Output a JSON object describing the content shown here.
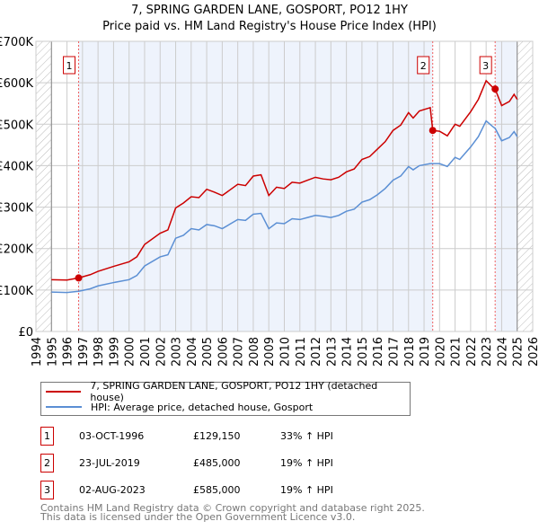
{
  "chart_data": {
    "type": "line",
    "title": "7, SPRING GARDEN LANE, GOSPORT, PO12 1HY",
    "subtitle": "Price paid vs. HM Land Registry's House Price Index (HPI)",
    "xlim": [
      1994,
      2026
    ],
    "ylim": [
      0,
      700000
    ],
    "y_ticks": [
      {
        "v": 0,
        "label": "£0"
      },
      {
        "v": 100000,
        "label": "£100K"
      },
      {
        "v": 200000,
        "label": "£200K"
      },
      {
        "v": 300000,
        "label": "£300K"
      },
      {
        "v": 400000,
        "label": "£400K"
      },
      {
        "v": 500000,
        "label": "£500K"
      },
      {
        "v": 600000,
        "label": "£600K"
      },
      {
        "v": 700000,
        "label": "£700K"
      }
    ],
    "x_ticks": [
      "1994",
      "1995",
      "1996",
      "1997",
      "1998",
      "1999",
      "2000",
      "2001",
      "2002",
      "2003",
      "2004",
      "2005",
      "2006",
      "2007",
      "2008",
      "2009",
      "2010",
      "2011",
      "2012",
      "2013",
      "2014",
      "2015",
      "2016",
      "2017",
      "2018",
      "2019",
      "2020",
      "2021",
      "2022",
      "2023",
      "2024",
      "2025",
      "2026"
    ],
    "data_range": [
      1995,
      2025
    ],
    "grid": true,
    "series": [
      {
        "name": "7, SPRING GARDEN LANE, GOSPORT, PO12 1HY (detached house)",
        "color": "#cc0000",
        "x": [
          1995,
          1996,
          1996.75,
          1997.5,
          1998,
          1999,
          2000,
          2000.5,
          2001,
          2002,
          2002.5,
          2003,
          2003.5,
          2004,
          2004.5,
          2005,
          2005.5,
          2006,
          2007,
          2007.5,
          2008,
          2008.5,
          2009,
          2009.5,
          2010,
          2010.5,
          2011,
          2011.5,
          2012,
          2012.5,
          2013,
          2013.5,
          2014,
          2014.5,
          2015,
          2015.5,
          2016,
          2016.5,
          2017,
          2017.5,
          2018,
          2018.3,
          2018.7,
          2019.4,
          2019.56,
          2020,
          2020.5,
          2021,
          2021.3,
          2022,
          2022.5,
          2023,
          2023.4,
          2023.58,
          2024,
          2024.5,
          2024.8,
          2025
        ],
        "y": [
          125000,
          124000,
          129150,
          137000,
          145000,
          157000,
          168000,
          180000,
          210000,
          237000,
          245000,
          298000,
          310000,
          325000,
          323000,
          343000,
          336000,
          328000,
          355000,
          352000,
          375000,
          378000,
          328000,
          348000,
          345000,
          360000,
          358000,
          365000,
          372000,
          368000,
          366000,
          372000,
          385000,
          392000,
          415000,
          422000,
          440000,
          458000,
          485000,
          498000,
          528000,
          515000,
          532000,
          540000,
          485000,
          483000,
          472000,
          500000,
          495000,
          530000,
          560000,
          605000,
          590000,
          585000,
          545000,
          555000,
          572000,
          560000
        ]
      },
      {
        "name": "HPI: Average price, detached house, Gosport",
        "color": "#5b8fd4",
        "x": [
          1995,
          1996,
          1996.75,
          1997.5,
          1998,
          1999,
          2000,
          2000.5,
          2001,
          2002,
          2002.5,
          2003,
          2003.5,
          2004,
          2004.5,
          2005,
          2005.5,
          2006,
          2007,
          2007.5,
          2008,
          2008.5,
          2009,
          2009.5,
          2010,
          2010.5,
          2011,
          2011.5,
          2012,
          2012.5,
          2013,
          2013.5,
          2014,
          2014.5,
          2015,
          2015.5,
          2016,
          2016.5,
          2017,
          2017.5,
          2018,
          2018.3,
          2018.7,
          2019.4,
          2019.56,
          2020,
          2020.5,
          2021,
          2021.3,
          2022,
          2022.5,
          2023,
          2023.4,
          2023.58,
          2024,
          2024.5,
          2024.8,
          2025
        ],
        "y": [
          95000,
          94000,
          97000,
          103000,
          110000,
          118000,
          125000,
          135000,
          158000,
          180000,
          185000,
          225000,
          232000,
          248000,
          245000,
          258000,
          255000,
          248000,
          270000,
          268000,
          283000,
          285000,
          248000,
          262000,
          260000,
          272000,
          270000,
          275000,
          280000,
          278000,
          275000,
          280000,
          290000,
          295000,
          312000,
          318000,
          330000,
          345000,
          365000,
          375000,
          398000,
          390000,
          400000,
          405000,
          405000,
          405000,
          398000,
          420000,
          415000,
          445000,
          470000,
          508000,
          495000,
          490000,
          460000,
          468000,
          482000,
          470000
        ]
      }
    ],
    "sales": [
      {
        "n": "1",
        "x": 1996.75,
        "date": "03-OCT-1996",
        "price_value": 129150,
        "price": "£129,150",
        "hpi": "33% ↑ HPI"
      },
      {
        "n": "2",
        "x": 2019.56,
        "date": "23-JUL-2019",
        "price_value": 485000,
        "price": "£485,000",
        "hpi": "19% ↑ HPI"
      },
      {
        "n": "3",
        "x": 2023.58,
        "date": "02-AUG-2023",
        "price_value": 585000,
        "price": "£585,000",
        "hpi": "19% ↑ HPI"
      }
    ],
    "legend": {
      "placement": "below",
      "items": [
        "7, SPRING GARDEN LANE, GOSPORT, PO12 1HY (detached house)",
        "HPI: Average price, detached house, Gosport"
      ]
    }
  },
  "footer": {
    "line1": "Contains HM Land Registry data © Crown copyright and database right 2025.",
    "line2": "This data is licensed under the Open Government Licence v3.0."
  }
}
